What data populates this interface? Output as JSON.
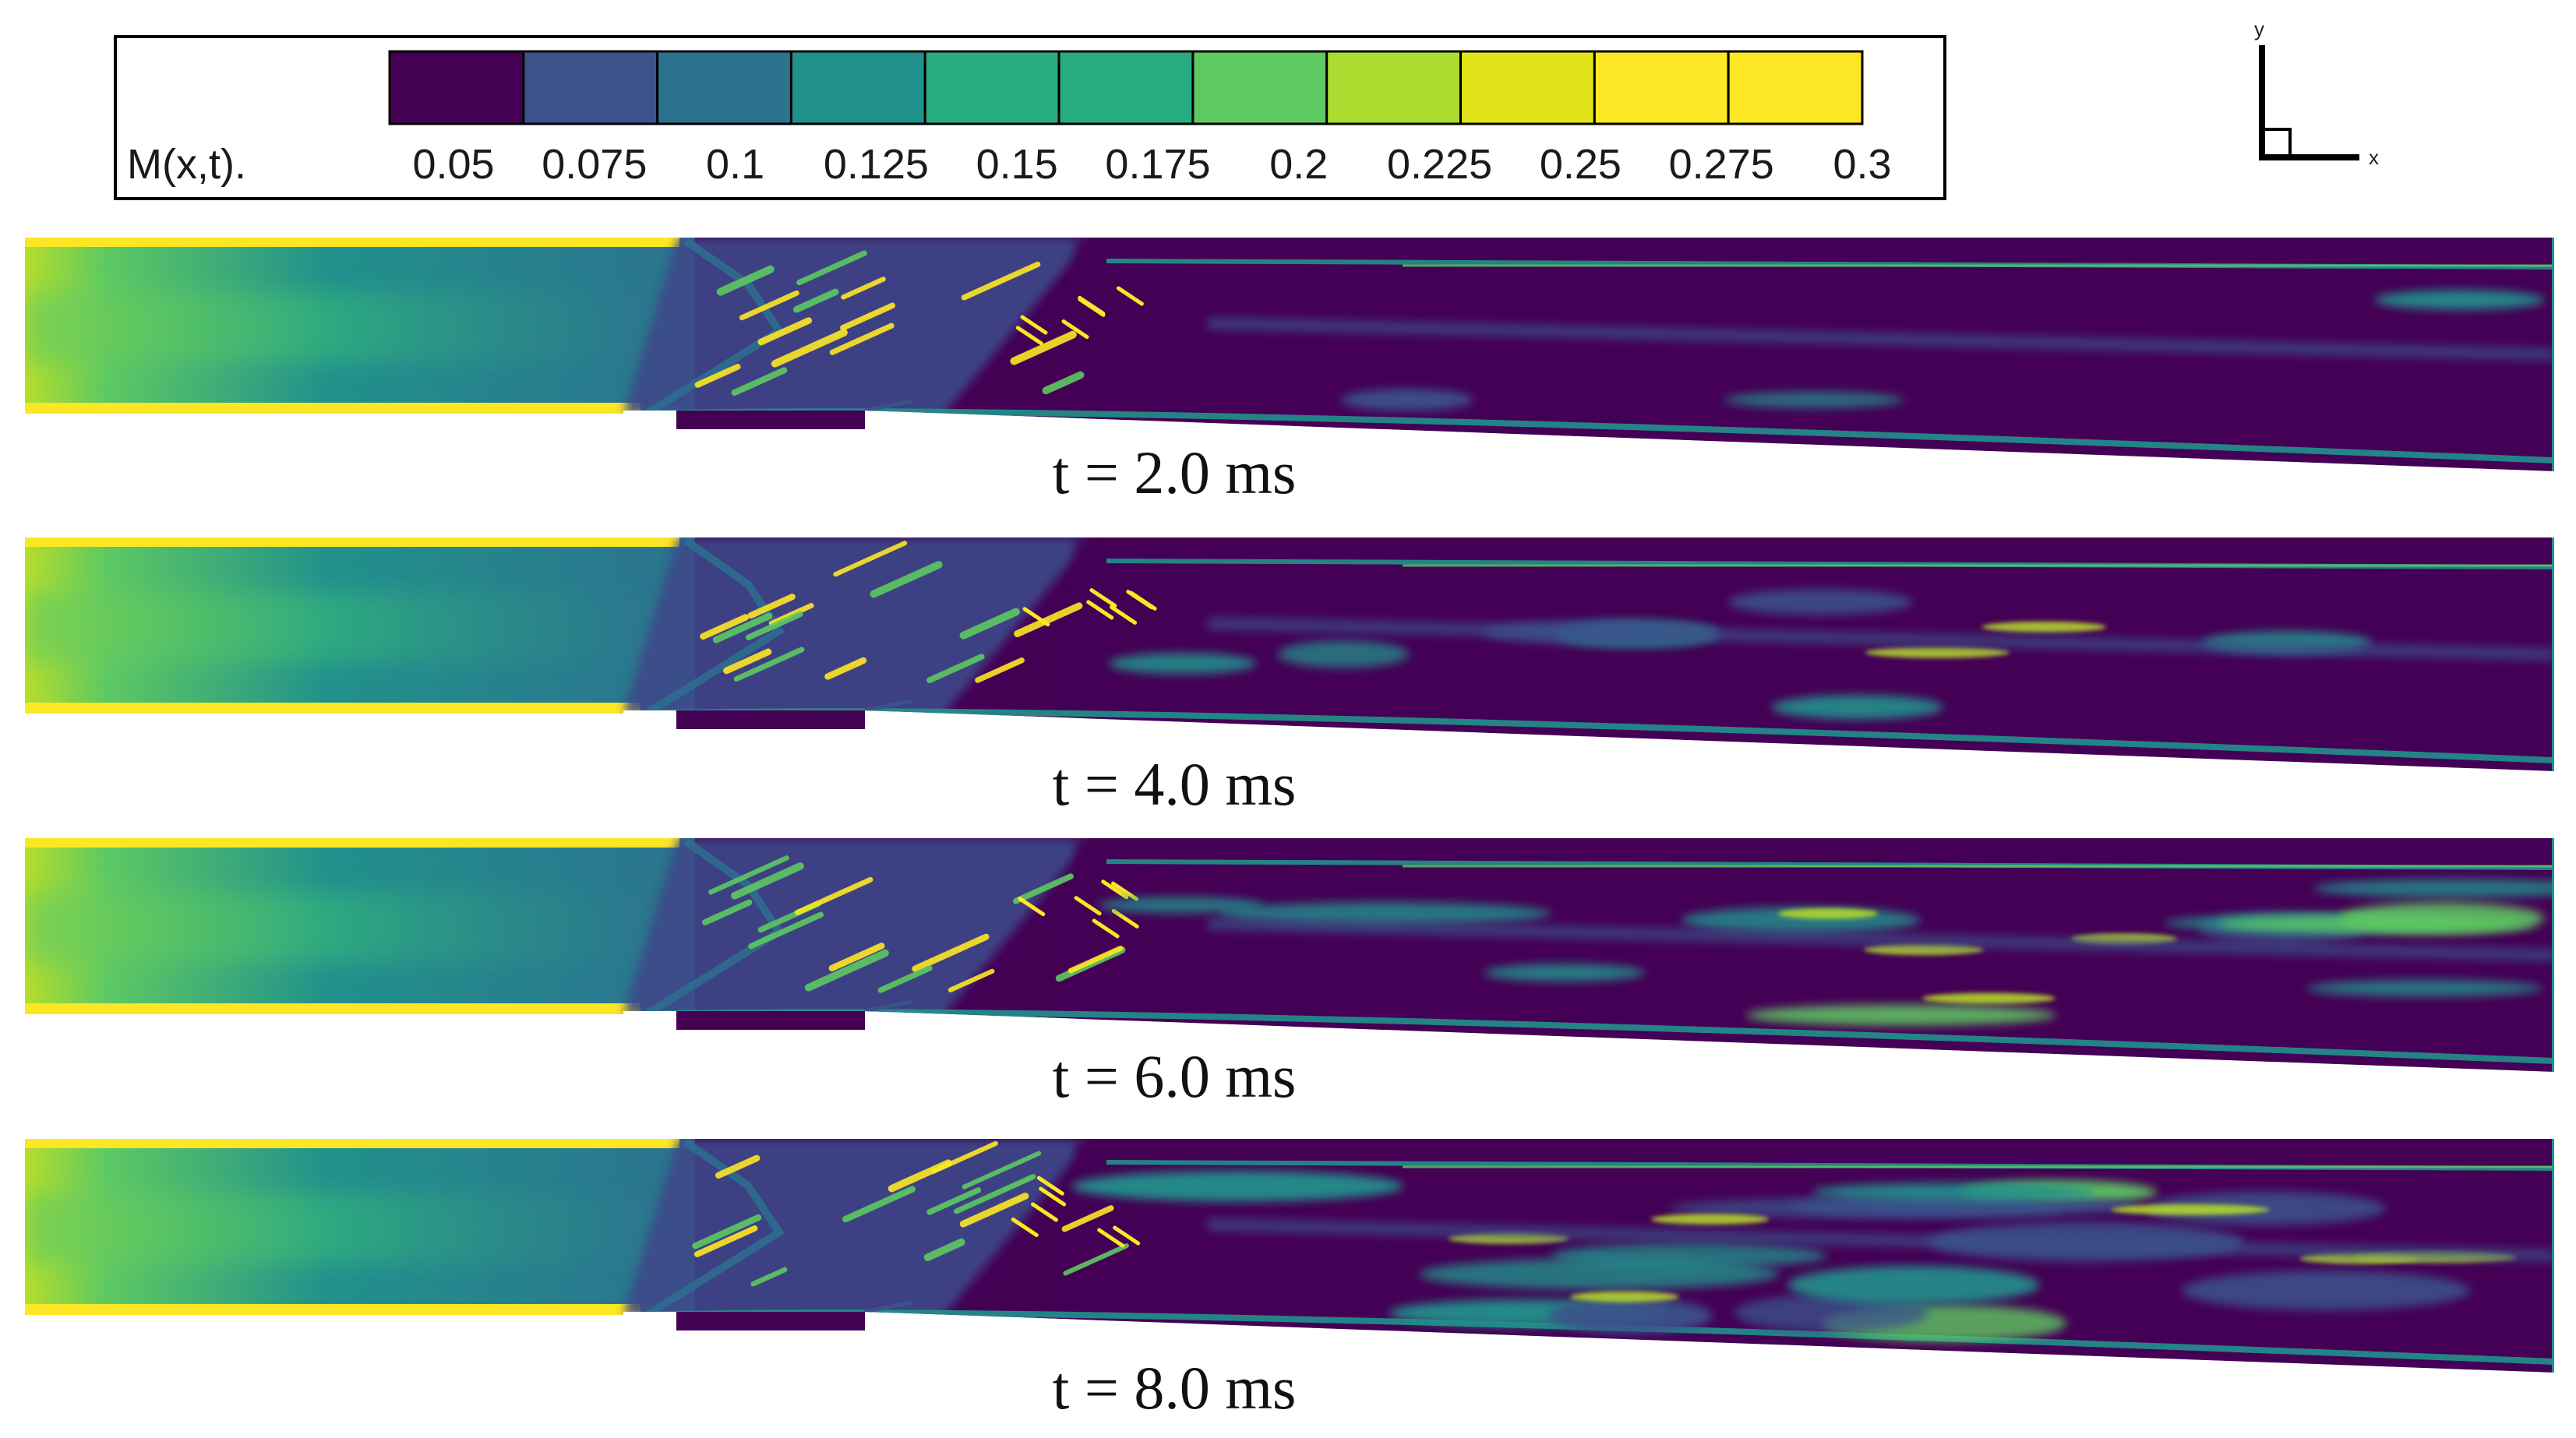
{
  "colorbar": {
    "label": "M(x,t).",
    "ticks": [
      "0.05",
      "0.075",
      "0.1",
      "0.125",
      "0.15",
      "0.175",
      "0.2",
      "0.225",
      "0.25",
      "0.275",
      "0.3"
    ],
    "colors": [
      "#440154",
      "#3b528b",
      "#2c728e",
      "#21918c",
      "#28ae80",
      "#27ad81",
      "#5ec962",
      "#addc30",
      "#e1e319",
      "#fde725",
      "#fde725"
    ]
  },
  "axes_triad": {
    "y_label": "y",
    "x_label": "x"
  },
  "palette": {
    "dark": "#440154",
    "blue": "#3b528b",
    "teal": "#21918c",
    "green": "#5ec962",
    "yellow": "#fde725"
  },
  "panels": [
    {
      "time_label": "t = 2.0 ms"
    },
    {
      "time_label": "t = 4.0 ms"
    },
    {
      "time_label": "t = 6.0 ms"
    },
    {
      "time_label": "t = 8.0 ms"
    }
  ]
}
